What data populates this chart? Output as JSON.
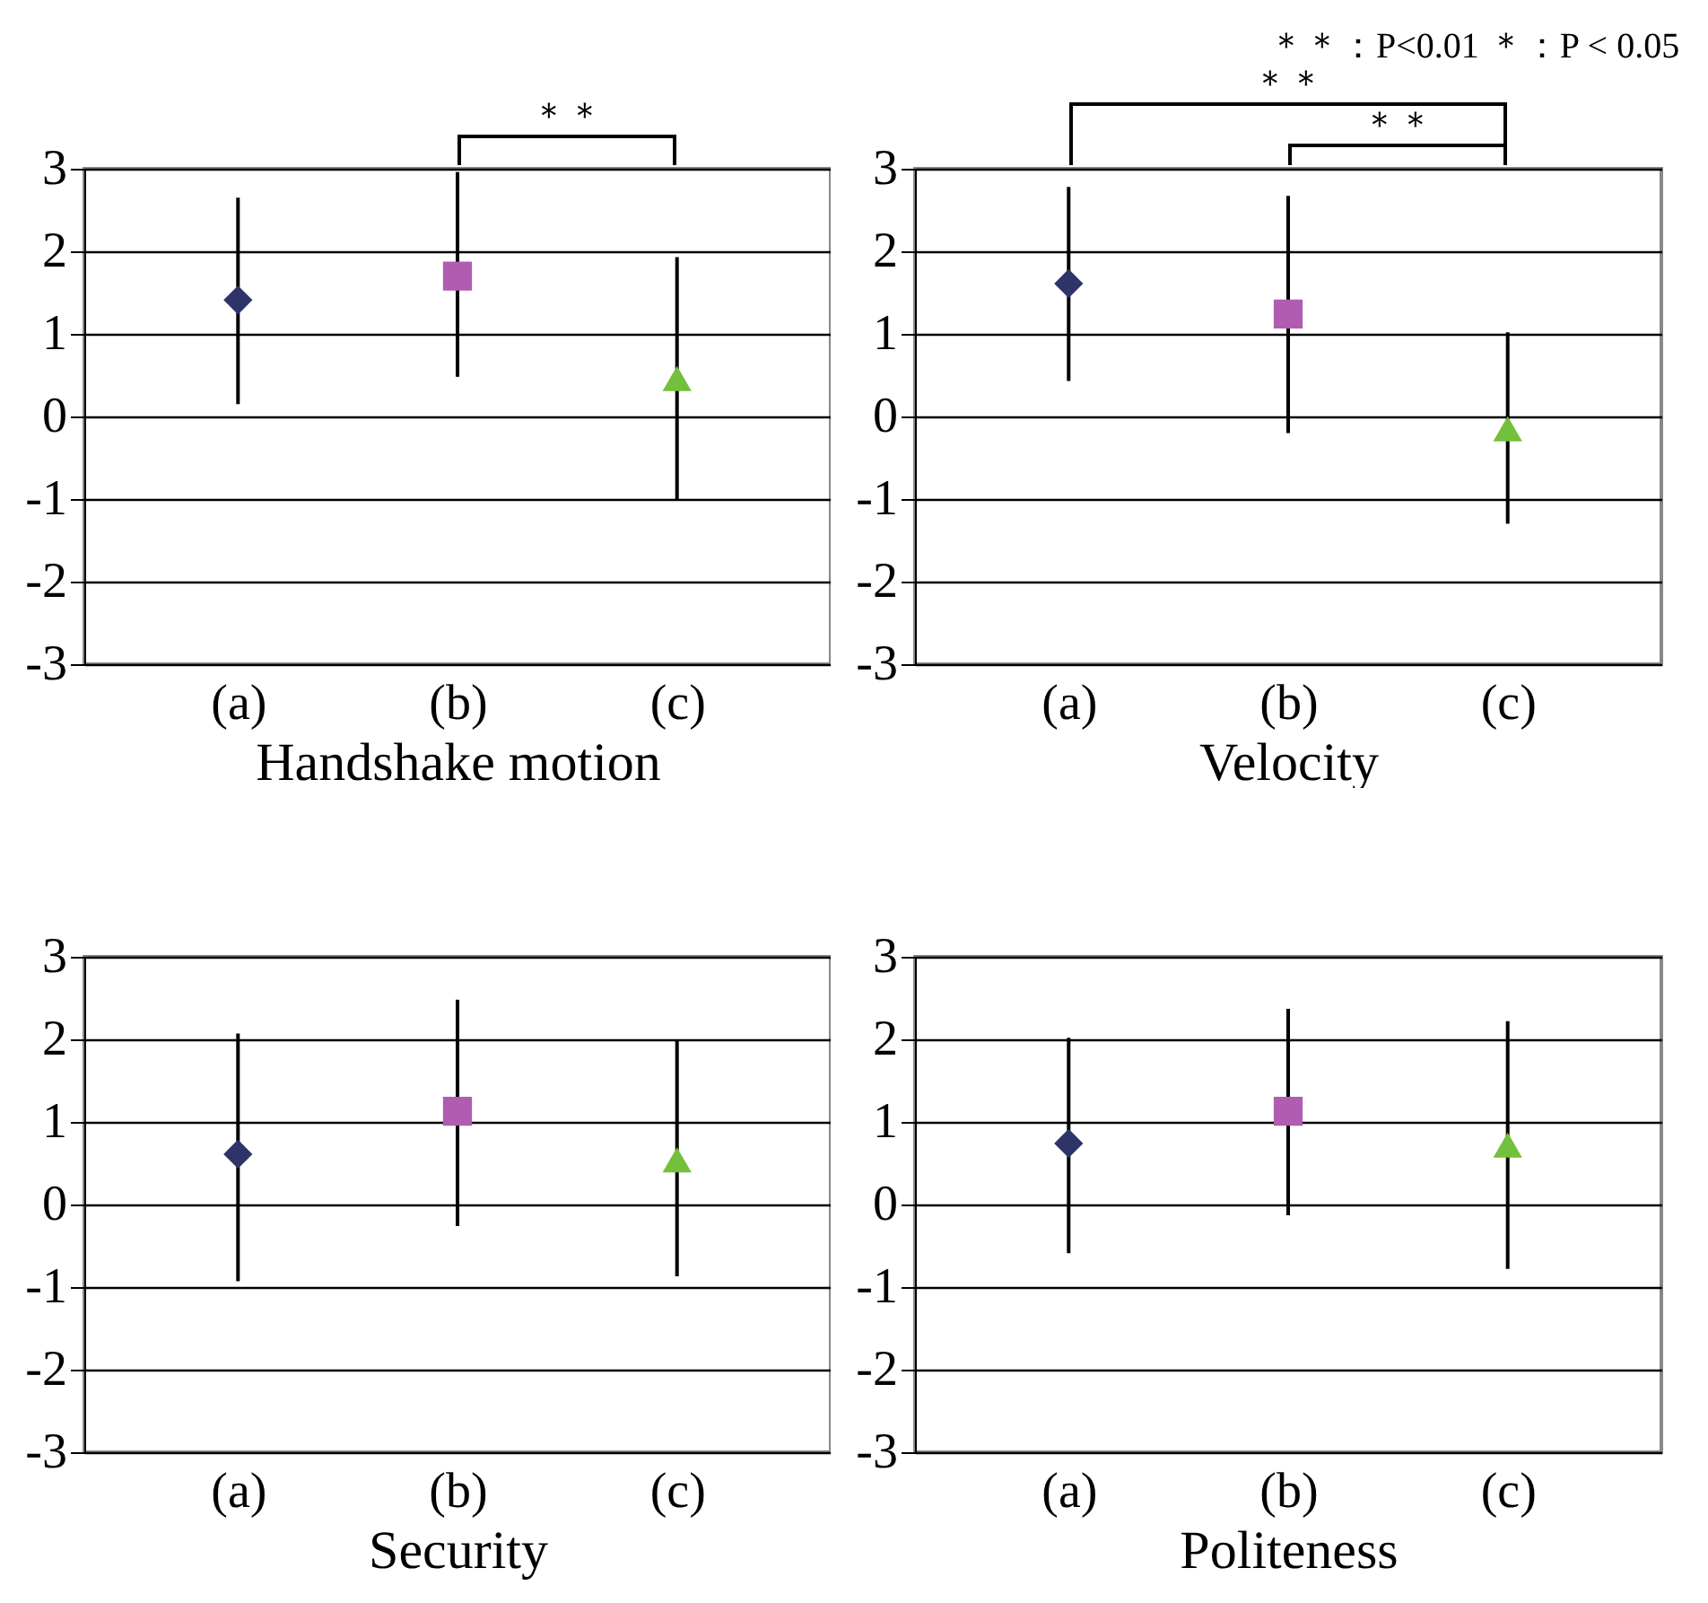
{
  "chart_data": [
    {
      "type": "scatter",
      "xlabel": "Handshake motion",
      "categories": [
        "(a)",
        "(b)",
        "(c)"
      ],
      "ylim": [
        -3,
        3
      ],
      "yticks": [
        -3,
        -2,
        -1,
        0,
        1,
        2,
        3
      ],
      "grid": "y",
      "annotations": [
        "＊＊"
      ],
      "series": [
        {
          "color": "#2e3468",
          "marker": "diamond",
          "values": [
            1.41,
            null,
            null
          ],
          "errors": [
            [
              0.15,
              2.65
            ],
            null,
            null
          ]
        },
        {
          "color": "#b05cb0",
          "marker": "square",
          "values": [
            null,
            1.7,
            null
          ],
          "errors": [
            null,
            [
              0.48,
              2.96
            ],
            null
          ]
        },
        {
          "color": "#72c03c",
          "marker": "triangle",
          "values": [
            null,
            null,
            0.46
          ],
          "errors": [
            null,
            null,
            [
              -1.02,
              1.93
            ]
          ]
        }
      ]
    },
    {
      "type": "scatter",
      "xlabel": "Velocity",
      "categories": [
        "(a)",
        "(b)",
        "(c)"
      ],
      "ylim": [
        -3,
        3
      ],
      "yticks": [
        -3,
        -2,
        -1,
        0,
        1,
        2,
        3
      ],
      "grid": "y",
      "annotations": [
        "＊＊：P<0.01 ＊：P < 0.05",
        "＊＊",
        "＊＊"
      ],
      "series": [
        {
          "color": "#2e3468",
          "marker": "diamond",
          "values": [
            1.61,
            null,
            null
          ],
          "errors": [
            [
              0.43,
              2.78
            ],
            null,
            null
          ]
        },
        {
          "color": "#b05cb0",
          "marker": "square",
          "values": [
            null,
            1.24,
            null
          ],
          "errors": [
            null,
            [
              -0.2,
              2.67
            ],
            null
          ]
        },
        {
          "color": "#72c03c",
          "marker": "triangle",
          "values": [
            null,
            null,
            -0.15
          ],
          "errors": [
            null,
            null,
            [
              -1.3,
              1.02
            ]
          ]
        }
      ]
    },
    {
      "type": "scatter",
      "xlabel": "Security",
      "categories": [
        "(a)",
        "(b)",
        "(c)"
      ],
      "ylim": [
        -3,
        3
      ],
      "yticks": [
        -3,
        -2,
        -1,
        0,
        1,
        2,
        3
      ],
      "grid": "y",
      "series": [
        {
          "color": "#2e3468",
          "marker": "diamond",
          "values": [
            0.61,
            null,
            null
          ],
          "errors": [
            [
              -0.93,
              2.07
            ],
            null,
            null
          ]
        },
        {
          "color": "#b05cb0",
          "marker": "square",
          "values": [
            null,
            1.13,
            null
          ],
          "errors": [
            null,
            [
              -0.26,
              2.48
            ],
            null
          ]
        },
        {
          "color": "#72c03c",
          "marker": "triangle",
          "values": [
            null,
            null,
            0.54
          ],
          "errors": [
            null,
            null,
            [
              -0.87,
              1.98
            ]
          ]
        }
      ]
    },
    {
      "type": "scatter",
      "xlabel": "Politeness",
      "categories": [
        "(a)",
        "(b)",
        "(c)"
      ],
      "ylim": [
        -3,
        3
      ],
      "yticks": [
        -3,
        -2,
        -1,
        0,
        1,
        2,
        3
      ],
      "grid": "y",
      "series": [
        {
          "color": "#2e3468",
          "marker": "diamond",
          "values": [
            0.74,
            null,
            null
          ],
          "errors": [
            [
              -0.59,
              2.02
            ],
            null,
            null
          ]
        },
        {
          "color": "#b05cb0",
          "marker": "square",
          "values": [
            null,
            1.13,
            null
          ],
          "errors": [
            null,
            [
              -0.13,
              2.37
            ],
            null
          ]
        },
        {
          "color": "#72c03c",
          "marker": "triangle",
          "values": [
            null,
            null,
            0.72
          ],
          "errors": [
            null,
            null,
            [
              -0.78,
              2.22
            ]
          ]
        }
      ]
    }
  ]
}
